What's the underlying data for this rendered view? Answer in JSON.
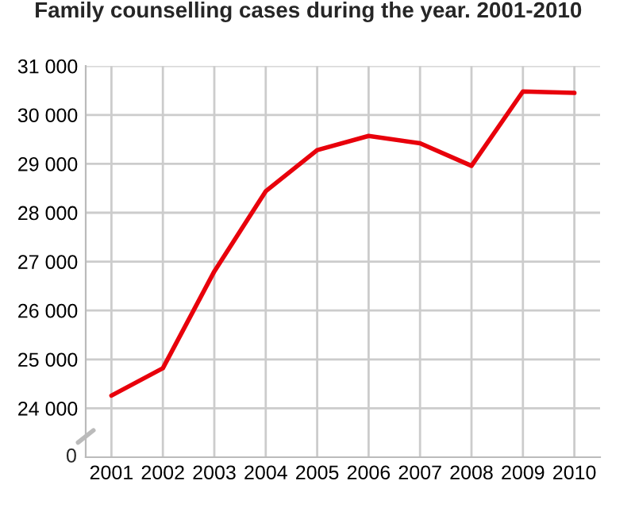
{
  "chart_data": {
    "type": "line",
    "title": "Family counselling cases during the year. 2001-2010",
    "categories": [
      "2001",
      "2002",
      "2003",
      "2004",
      "2005",
      "2006",
      "2007",
      "2008",
      "2009",
      "2010"
    ],
    "series": [
      {
        "color": "#e8000b",
        "values": [
          24260,
          24820,
          26800,
          28440,
          29280,
          29570,
          29420,
          28960,
          30480,
          30450
        ]
      }
    ],
    "ylim": [
      23000,
      31000
    ],
    "annotations": [
      "0"
    ],
    "yticks": [
      {
        "value": 24000,
        "label": "24 000"
      },
      {
        "value": 25000,
        "label": "25 000"
      },
      {
        "value": 26000,
        "label": "26 000"
      },
      {
        "value": 27000,
        "label": "27 000"
      },
      {
        "value": 28000,
        "label": "28 000"
      },
      {
        "value": 29000,
        "label": "29 000"
      },
      {
        "value": 30000,
        "label": "30 000"
      },
      {
        "value": 31000,
        "label": "31 000"
      }
    ],
    "grid": true,
    "line_style": "solid",
    "marker": "none"
  }
}
